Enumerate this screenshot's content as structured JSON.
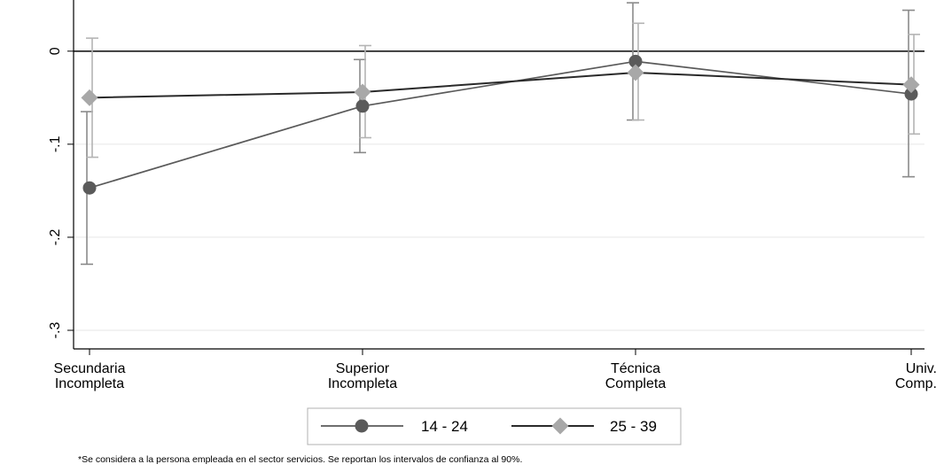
{
  "chart_data": {
    "type": "line",
    "categories": [
      [
        "Secundaria",
        "Incompleta"
      ],
      [
        "Superior",
        "Incompleta"
      ],
      [
        "Técnica",
        "Completa"
      ],
      [
        "Univ.",
        "Comp."
      ]
    ],
    "series": [
      {
        "name": "14 - 24",
        "marker": "circle",
        "color": "#5a5a5a",
        "ci_color": "#8a8a8a",
        "values": [
          -0.147,
          -0.059,
          -0.011,
          -0.046
        ],
        "ci_low": [
          -0.229,
          -0.109,
          -0.074,
          -0.135
        ],
        "ci_high": [
          -0.065,
          -0.009,
          0.052,
          0.044
        ]
      },
      {
        "name": "25 - 39",
        "marker": "diamond",
        "color": "#2a2a2a",
        "marker_color": "#a8a8a8",
        "ci_color": "#b4b4b4",
        "values": [
          -0.05,
          -0.044,
          -0.023,
          -0.036
        ],
        "ci_low": [
          -0.114,
          -0.093,
          -0.074,
          -0.089
        ],
        "ci_high": [
          0.014,
          0.006,
          0.03,
          0.018
        ]
      }
    ],
    "y_ticks": [
      "-.3",
      "-.2",
      "-.1",
      "0"
    ],
    "ylim": [
      -0.32,
      0.055
    ],
    "grid": true,
    "reference_line": 0,
    "legend_position": "bottom"
  },
  "footnote": "*Se considera a la persona empleada en el sector servicios. Se reportan los intervalos de confianza al 90%."
}
